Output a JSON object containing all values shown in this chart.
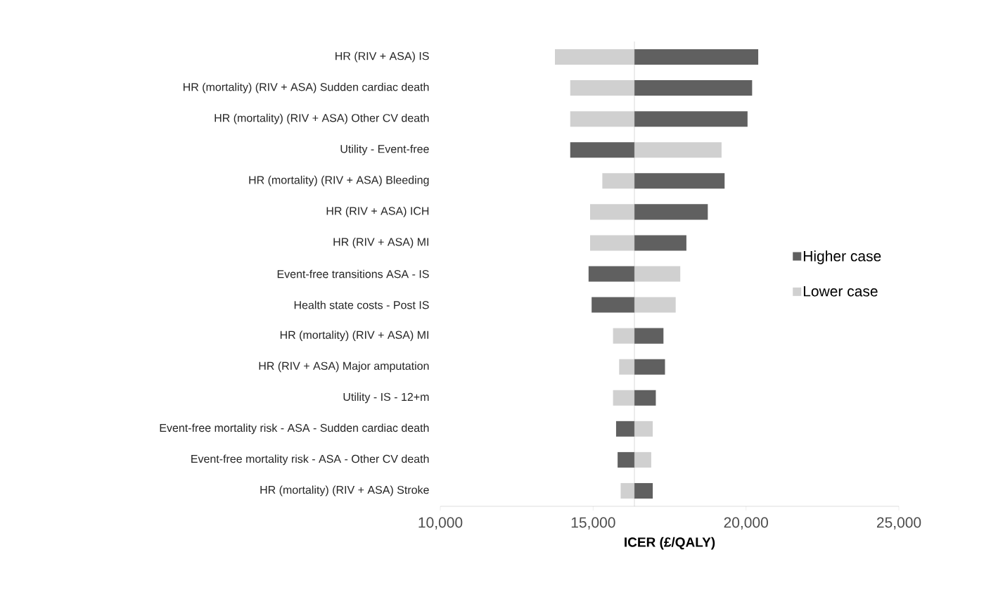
{
  "chart_data": {
    "type": "bar",
    "orientation": "horizontal",
    "xlabel": "ICER (£/QALY)",
    "categories": [
      "HR (RIV + ASA) IS",
      "HR (mortality) (RIV + ASA) Sudden cardiac death",
      "HR (mortality) (RIV + ASA) Other CV death",
      "Utility - Event-free",
      "HR (mortality) (RIV + ASA) Bleeding",
      "HR (RIV + ASA) ICH",
      "HR (RIV + ASA) MI",
      "Event-free transitions ASA - IS",
      "Health state costs - Post IS",
      "HR (mortality) (RIV + ASA) MI",
      "HR (RIV + ASA) Major amputation",
      "Utility - IS - 12+m",
      "Event-free mortality risk - ASA - Sudden cardiac death",
      "Event-free mortality risk - ASA - Other CV death",
      "HR (mortality) (RIV + ASA) Stroke"
    ],
    "series": [
      {
        "name": "Higher case",
        "color": "#606060",
        "base": [
          16350,
          16350,
          16350,
          16350,
          16350,
          16350,
          16350,
          16350,
          16350,
          16350,
          16350,
          16350,
          16350,
          16350,
          16350
        ],
        "values": [
          4050,
          3850,
          3700,
          -2100,
          2950,
          2400,
          1700,
          -1500,
          -1400,
          950,
          1000,
          700,
          -600,
          -550,
          600
        ]
      },
      {
        "name": "Lower case",
        "color": "#d0d0d0",
        "base": [
          16350,
          16350,
          16350,
          16350,
          16350,
          16350,
          16350,
          16350,
          16350,
          16350,
          16350,
          16350,
          16350,
          16350,
          16350
        ],
        "values": [
          -2600,
          -2100,
          -2100,
          2850,
          -1050,
          -1450,
          -1450,
          1500,
          1350,
          -700,
          -500,
          -700,
          600,
          550,
          -450
        ]
      }
    ],
    "xlim": [
      10000,
      25000
    ],
    "xticks": [
      {
        "value": 10000,
        "label": "10,000"
      },
      {
        "value": 15000,
        "label": "15,000"
      },
      {
        "value": 20000,
        "label": "20,000"
      },
      {
        "value": 25000,
        "label": "25,000"
      }
    ],
    "ref_lines": [
      {
        "axis": "x",
        "value": 16350,
        "color": "#a0a0a0"
      }
    ],
    "legend": "right",
    "grid": false
  }
}
